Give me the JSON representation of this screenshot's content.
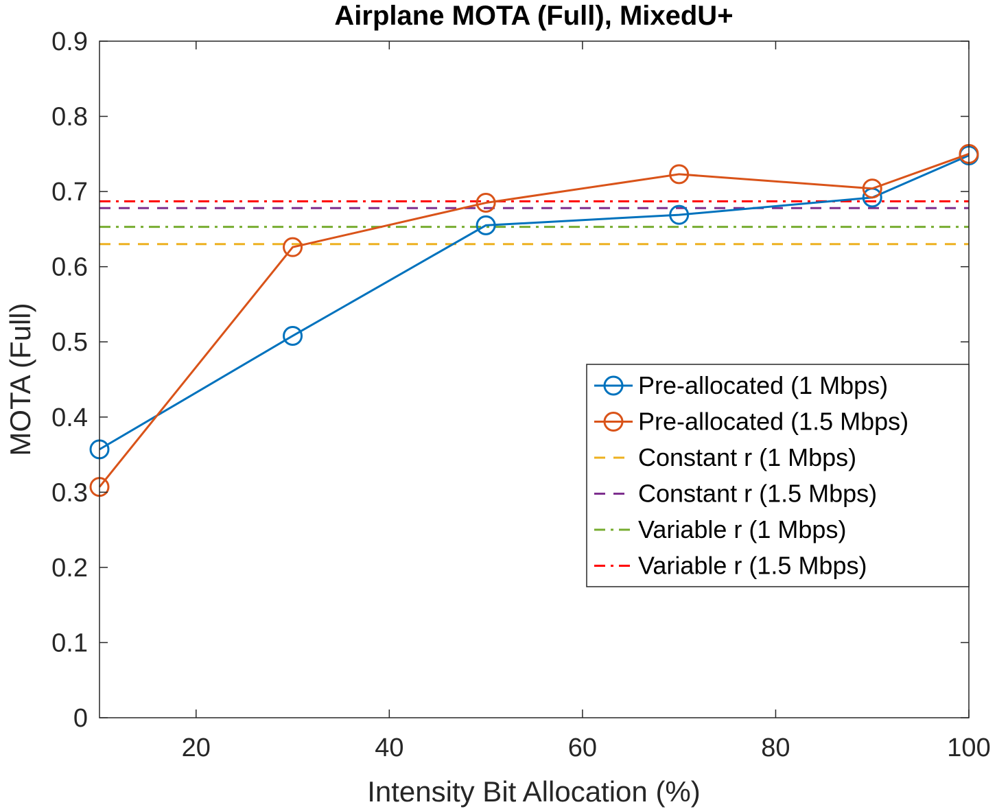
{
  "chart_data": {
    "type": "line",
    "title": "Airplane MOTA (Full), MixedU+",
    "xlabel": "Intensity Bit Allocation (%)",
    "ylabel": "MOTA (Full)",
    "xlim": [
      10,
      100
    ],
    "ylim": [
      0,
      0.9
    ],
    "xticks": [
      20,
      40,
      60,
      80,
      100
    ],
    "xtick_labels": [
      "20",
      "40",
      "60",
      "80",
      "100"
    ],
    "yticks": [
      0,
      0.1,
      0.2,
      0.3,
      0.4,
      0.5,
      0.6,
      0.7,
      0.8,
      0.9
    ],
    "ytick_labels": [
      "0",
      "0.1",
      "0.2",
      "0.3",
      "0.4",
      "0.5",
      "0.6",
      "0.7",
      "0.8",
      "0.9"
    ],
    "grid": false,
    "legend_position": "right",
    "x": [
      10,
      30,
      50,
      70,
      90,
      100
    ],
    "series": [
      {
        "name": "Pre-allocated (1 Mbps)",
        "style": "solid-marker",
        "color": "#0072BD",
        "values": [
          0.357,
          0.508,
          0.655,
          0.669,
          0.692,
          0.748
        ]
      },
      {
        "name": "Pre-allocated (1.5 Mbps)",
        "style": "solid-marker",
        "color": "#D95319",
        "values": [
          0.307,
          0.626,
          0.685,
          0.723,
          0.704,
          0.75
        ]
      },
      {
        "name": "Constant r (1 Mbps)",
        "style": "dashed",
        "color": "#EDB120",
        "constant": 0.63
      },
      {
        "name": "Constant r (1.5 Mbps)",
        "style": "dashed",
        "color": "#7E2F8E",
        "constant": 0.678
      },
      {
        "name": "Variable r (1 Mbps)",
        "style": "dashdot",
        "color": "#77AC30",
        "constant": 0.653
      },
      {
        "name": "Variable r (1.5 Mbps)",
        "style": "dashdot",
        "color": "#FF0000",
        "constant": 0.687
      }
    ]
  }
}
